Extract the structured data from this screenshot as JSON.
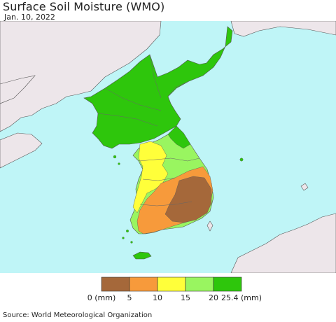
{
  "title": "Surface Soil Moisture (WMO)",
  "date": "Jan. 10, 2022",
  "source": "Source: World Meteorological Organization",
  "colors": {
    "ocean": "#bff5f7",
    "land_other": "#ede6ea",
    "border": "#555555"
  },
  "legend": {
    "colors": [
      "#a5683a",
      "#f79a3b",
      "#ffff3a",
      "#99f560",
      "#2ec60c"
    ],
    "tick_labels": [
      "0 (mm)",
      "5",
      "10",
      "15",
      "20",
      "25.4 (mm)"
    ]
  }
}
